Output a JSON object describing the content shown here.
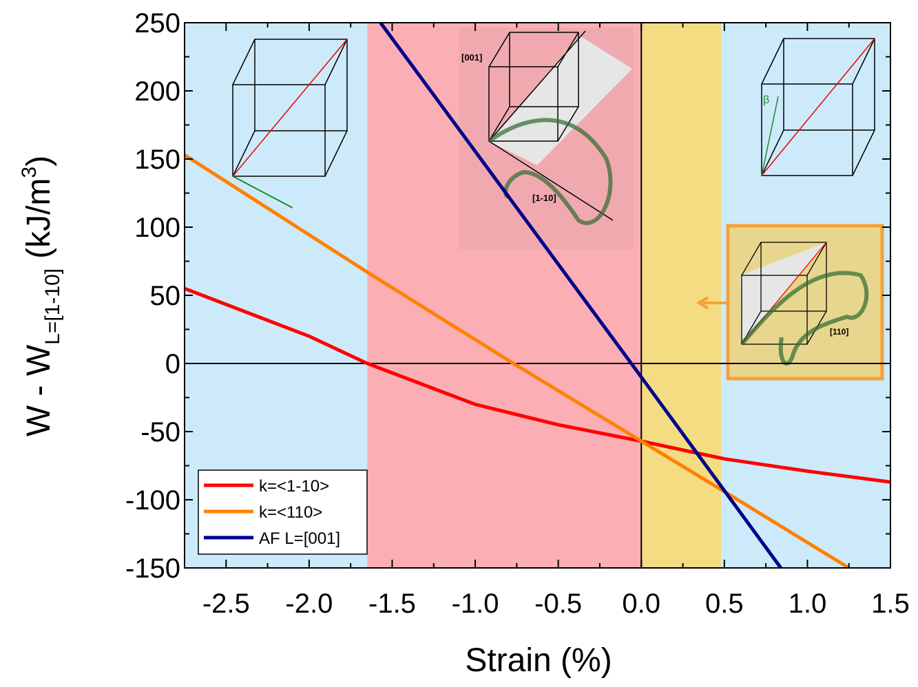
{
  "chart_data": {
    "type": "line",
    "x_label": "Strain (%)",
    "y_label": {
      "main": "W - W",
      "sub": "L=[1-10]",
      "unit": "(kJ/m",
      "sup": "3",
      "close": ")"
    },
    "xlim": [
      -2.75,
      1.5
    ],
    "ylim": [
      -150,
      250
    ],
    "xticks": [
      -2.5,
      {
        "value": -2.0,
        "label": "-2.0"
      },
      -1.5,
      {
        "value": -1.0,
        "label": "-1.0"
      },
      -0.5,
      {
        "value": 0.0,
        "label": "0.0"
      },
      0.5,
      {
        "value": 1.0,
        "label": "1.0"
      },
      1.5
    ],
    "yticks": [
      250,
      200,
      150,
      100,
      50,
      0,
      -50,
      -100,
      -150
    ],
    "background": "#cdeafa",
    "regions": [
      {
        "x": [
          -1.65,
          0
        ],
        "color": "#fbafb4"
      },
      {
        "x": [
          0,
          0.48
        ],
        "color": "#f4dc82"
      }
    ],
    "legend": "lower left",
    "series": [
      {
        "name": "k=<1-10>",
        "color": "#ff0000",
        "x": [
          -2.75,
          -2.0,
          -1.65,
          -1.0,
          -0.5,
          0,
          0.5,
          1.0,
          1.5
        ],
        "values": [
          55,
          20,
          0,
          -30,
          -45,
          -57,
          -70,
          -79,
          -87
        ]
      },
      {
        "name": "k=<110>",
        "color": "#ff8000",
        "x": [
          -2.75,
          -1.65,
          -0.77,
          0,
          0.5,
          1.25
        ],
        "values": [
          153,
          67,
          0,
          -57,
          -94,
          -150
        ]
      },
      {
        "name": "AF L=[001]",
        "color": "#00008b",
        "x": [
          -1.57,
          0,
          0.84
        ],
        "values": [
          250,
          -10,
          -150
        ]
      }
    ],
    "annotations": [
      "[001]",
      "[1-10]",
      "[110]",
      "β"
    ]
  }
}
